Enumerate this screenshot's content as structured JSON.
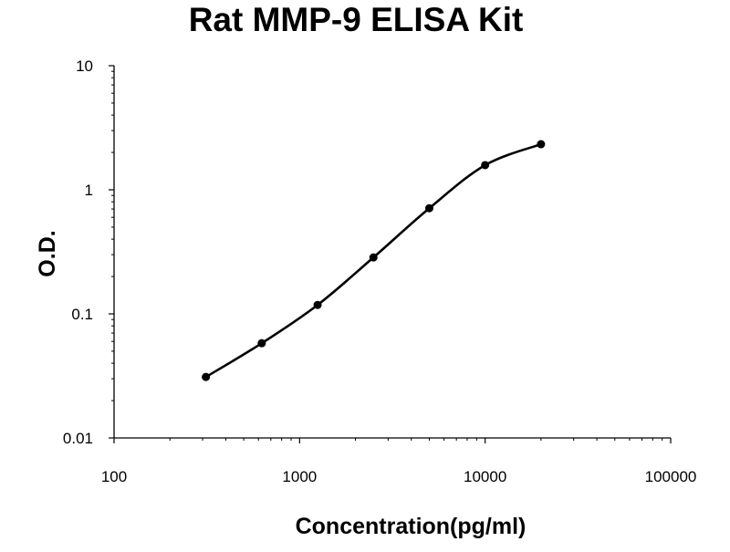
{
  "chart_data": {
    "type": "scatter",
    "title": "Rat MMP-9 ELISA Kit",
    "xlabel": "Concentration(pg/ml)",
    "ylabel": "O.D.",
    "x_scale": "log",
    "y_scale": "log",
    "xlim": [
      100,
      100000
    ],
    "ylim": [
      0.01,
      10
    ],
    "x_ticks": [
      "100",
      "1000",
      "10000",
      "100000"
    ],
    "y_ticks": [
      "0.01",
      "0.1",
      "1",
      "10"
    ],
    "grid": false,
    "legend": "none",
    "series": [
      {
        "x": [
          312.5,
          625,
          1250,
          2500,
          5000,
          10000,
          20000
        ],
        "y": [
          0.031,
          0.058,
          0.118,
          0.285,
          0.71,
          1.58,
          2.33
        ],
        "marker": "circle",
        "line": "smooth",
        "color": "#000000"
      }
    ]
  }
}
